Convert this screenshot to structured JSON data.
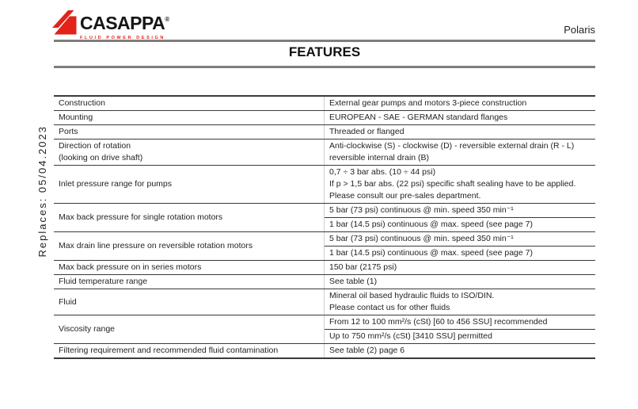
{
  "logo": {
    "name": "CASAPPA",
    "registered": "®",
    "tagline": "FLUID POWER DESIGN",
    "brand_red": "#e2231a"
  },
  "header": {
    "product": "Polaris",
    "title": "FEATURES"
  },
  "side_note": {
    "text": "Replaces: 05/04.2023"
  },
  "table": {
    "rows": [
      {
        "label": [
          "Construction"
        ],
        "values": [
          [
            "External gear pumps and motors 3-piece construction"
          ]
        ]
      },
      {
        "label": [
          "Mounting"
        ],
        "values": [
          [
            "EUROPEAN - SAE - GERMAN standard flanges"
          ]
        ]
      },
      {
        "label": [
          "Ports"
        ],
        "values": [
          [
            "Threaded or flanged"
          ]
        ]
      },
      {
        "label": [
          "Direction of rotation",
          "(looking on drive shaft)"
        ],
        "values": [
          [
            "Anti-clockwise (S) - clockwise (D) - reversible external drain (R - L)",
            "reversible internal drain (B)"
          ]
        ]
      },
      {
        "label": [
          "Inlet pressure range for pumps"
        ],
        "values": [
          [
            "0,7 ÷ 3 bar abs. (10 ÷ 44 psi)",
            "If p > 1,5 bar abs. (22 psi) specific shaft sealing have to be applied.",
            "Please consult our pre-sales department."
          ]
        ]
      },
      {
        "label": [
          "Max back pressure for single rotation motors"
        ],
        "values": [
          [
            "5 bar (73 psi) continuous @ min. speed 350 min⁻¹"
          ],
          [
            "1 bar (14.5 psi) continuous @ max. speed (see page 7)"
          ]
        ]
      },
      {
        "label": [
          "Max drain line pressure on reversible rotation motors"
        ],
        "values": [
          [
            "5 bar (73 psi) continuous @ min. speed 350 min⁻¹"
          ],
          [
            "1 bar (14.5 psi) continuous @ max. speed (see page 7)"
          ]
        ]
      },
      {
        "label": [
          "Max back pressure on in series motors"
        ],
        "values": [
          [
            "150 bar (2175 psi)"
          ]
        ]
      },
      {
        "label": [
          "Fluid temperature range"
        ],
        "values": [
          [
            "See table (1)"
          ]
        ]
      },
      {
        "label": [
          "Fluid"
        ],
        "values": [
          [
            "Mineral oil based hydraulic fluids to ISO/DIN.",
            "Please contact us for other fluids"
          ]
        ]
      },
      {
        "label": [
          "Viscosity range"
        ],
        "values": [
          [
            "From 12 to 100 mm²/s (cSt) [60 to 456 SSU] recommended"
          ],
          [
            "Up to 750 mm²/s (cSt) [3410 SSU] permitted"
          ]
        ]
      },
      {
        "label": [
          "Filtering requirement and recommended fluid contamination"
        ],
        "values": [
          [
            "See table (2) page 6"
          ]
        ]
      }
    ]
  }
}
